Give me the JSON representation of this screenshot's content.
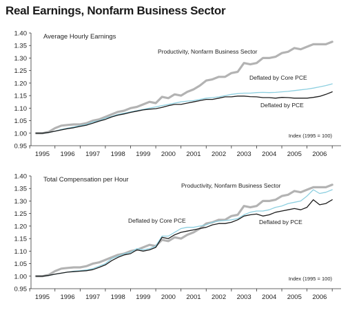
{
  "title": "Real Earnings, Nonfarm Business Sector",
  "colors": {
    "productivity": "#b3b3b3",
    "core_pce": "#8ccfe0",
    "pce": "#1a1a1a",
    "axis": "#333333"
  },
  "chart_data": [
    {
      "type": "line",
      "title": "Average Hourly Earnings",
      "note": "Index (1995 = 100)",
      "x_tick_labels": [
        "1995",
        "1996",
        "1997",
        "1998",
        "1999",
        "2000",
        "2001",
        "2002",
        "2003",
        "2004",
        "2005",
        "2006"
      ],
      "y_tick_labels": [
        "0.95",
        "1.00",
        "1.05",
        "1.10",
        "1.15",
        "1.20",
        "1.25",
        "1.30",
        "1.35",
        "1.40"
      ],
      "ylim": [
        0.95,
        1.4
      ],
      "x": [
        1994.75,
        1995.0,
        1995.25,
        1995.5,
        1995.75,
        1996.0,
        1996.25,
        1996.5,
        1996.75,
        1997.0,
        1997.25,
        1997.5,
        1997.75,
        1998.0,
        1998.25,
        1998.5,
        1998.75,
        1999.0,
        1999.25,
        1999.5,
        1999.75,
        2000.0,
        2000.25,
        2000.5,
        2000.75,
        2001.0,
        2001.25,
        2001.5,
        2001.75,
        2002.0,
        2002.25,
        2002.5,
        2002.75,
        2003.0,
        2003.25,
        2003.5,
        2003.75,
        2004.0,
        2004.25,
        2004.5,
        2004.75,
        2005.0,
        2005.25,
        2005.5,
        2005.75,
        2006.0,
        2006.25,
        2006.5
      ],
      "series": [
        {
          "name": "Productivity, Nonfarm Business Sector",
          "key": "productivity",
          "values": [
            1.0,
            1.0,
            1.005,
            1.02,
            1.03,
            1.033,
            1.035,
            1.035,
            1.04,
            1.05,
            1.055,
            1.065,
            1.075,
            1.085,
            1.09,
            1.1,
            1.105,
            1.115,
            1.125,
            1.12,
            1.145,
            1.14,
            1.155,
            1.15,
            1.165,
            1.175,
            1.19,
            1.21,
            1.215,
            1.225,
            1.225,
            1.24,
            1.245,
            1.28,
            1.275,
            1.28,
            1.3,
            1.3,
            1.305,
            1.32,
            1.325,
            1.34,
            1.335,
            1.345,
            1.355,
            1.355,
            1.355,
            1.365
          ],
          "label": "Productivity, Nonfarm Business Sector"
        },
        {
          "name": "Deflated by Core PCE",
          "key": "core_pce",
          "values": [
            1.0,
            1.0,
            1.003,
            1.008,
            1.015,
            1.02,
            1.025,
            1.03,
            1.035,
            1.045,
            1.05,
            1.06,
            1.067,
            1.075,
            1.08,
            1.085,
            1.09,
            1.095,
            1.1,
            1.105,
            1.11,
            1.115,
            1.12,
            1.125,
            1.128,
            1.13,
            1.135,
            1.14,
            1.142,
            1.145,
            1.15,
            1.155,
            1.158,
            1.16,
            1.16,
            1.162,
            1.163,
            1.162,
            1.163,
            1.165,
            1.167,
            1.17,
            1.173,
            1.176,
            1.18,
            1.185,
            1.19,
            1.197
          ],
          "label": "Deflated by Core PCE"
        },
        {
          "name": "Deflated by PCE",
          "key": "pce",
          "values": [
            1.0,
            1.0,
            1.003,
            1.008,
            1.013,
            1.018,
            1.022,
            1.027,
            1.032,
            1.04,
            1.048,
            1.055,
            1.065,
            1.072,
            1.077,
            1.083,
            1.088,
            1.093,
            1.096,
            1.098,
            1.103,
            1.11,
            1.115,
            1.115,
            1.12,
            1.125,
            1.13,
            1.135,
            1.135,
            1.14,
            1.145,
            1.145,
            1.148,
            1.148,
            1.146,
            1.145,
            1.142,
            1.142,
            1.14,
            1.143,
            1.142,
            1.14,
            1.14,
            1.14,
            1.143,
            1.147,
            1.155,
            1.165
          ],
          "label": "Deflated by PCE"
        }
      ]
    },
    {
      "type": "line",
      "title": "Total Compensation per Hour",
      "note": "Index (1995 = 100)",
      "x_tick_labels": [
        "1995",
        "1996",
        "1997",
        "1998",
        "1999",
        "2000",
        "2001",
        "2002",
        "2003",
        "2004",
        "2005",
        "2006"
      ],
      "y_tick_labels": [
        "0.95",
        "1.00",
        "1.05",
        "1.10",
        "1.15",
        "1.20",
        "1.25",
        "1.30",
        "1.35",
        "1.40"
      ],
      "ylim": [
        0.95,
        1.4
      ],
      "x": [
        1994.75,
        1995.0,
        1995.25,
        1995.5,
        1995.75,
        1996.0,
        1996.25,
        1996.5,
        1996.75,
        1997.0,
        1997.25,
        1997.5,
        1997.75,
        1998.0,
        1998.25,
        1998.5,
        1998.75,
        1999.0,
        1999.25,
        1999.5,
        1999.75,
        2000.0,
        2000.25,
        2000.5,
        2000.75,
        2001.0,
        2001.25,
        2001.5,
        2001.75,
        2002.0,
        2002.25,
        2002.5,
        2002.75,
        2003.0,
        2003.25,
        2003.5,
        2003.75,
        2004.0,
        2004.25,
        2004.5,
        2004.75,
        2005.0,
        2005.25,
        2005.5,
        2005.75,
        2006.0,
        2006.25,
        2006.5
      ],
      "series": [
        {
          "name": "Productivity, Nonfarm Business Sector",
          "key": "productivity",
          "values": [
            1.0,
            1.0,
            1.005,
            1.02,
            1.03,
            1.033,
            1.035,
            1.035,
            1.04,
            1.05,
            1.055,
            1.065,
            1.075,
            1.085,
            1.09,
            1.1,
            1.105,
            1.115,
            1.125,
            1.12,
            1.145,
            1.14,
            1.155,
            1.15,
            1.165,
            1.175,
            1.19,
            1.21,
            1.215,
            1.225,
            1.225,
            1.24,
            1.245,
            1.28,
            1.275,
            1.28,
            1.3,
            1.3,
            1.305,
            1.32,
            1.325,
            1.34,
            1.335,
            1.345,
            1.355,
            1.355,
            1.355,
            1.365
          ],
          "label": "Productivity, Nonfarm Business Sector"
        },
        {
          "name": "Deflated by Core PCE",
          "key": "core_pce",
          "values": [
            1.0,
            1.0,
            1.003,
            1.008,
            1.012,
            1.016,
            1.02,
            1.022,
            1.025,
            1.03,
            1.04,
            1.05,
            1.07,
            1.08,
            1.09,
            1.095,
            1.11,
            1.105,
            1.11,
            1.12,
            1.16,
            1.16,
            1.175,
            1.19,
            1.195,
            1.195,
            1.2,
            1.205,
            1.215,
            1.22,
            1.222,
            1.225,
            1.23,
            1.245,
            1.255,
            1.26,
            1.26,
            1.265,
            1.275,
            1.28,
            1.29,
            1.295,
            1.3,
            1.32,
            1.345,
            1.33,
            1.335,
            1.345
          ],
          "label": "Deflated by Core PCE"
        },
        {
          "name": "Deflated by PCE",
          "key": "pce",
          "values": [
            1.0,
            1.0,
            1.003,
            1.008,
            1.012,
            1.016,
            1.018,
            1.02,
            1.022,
            1.026,
            1.035,
            1.045,
            1.062,
            1.075,
            1.085,
            1.09,
            1.105,
            1.1,
            1.105,
            1.115,
            1.155,
            1.15,
            1.165,
            1.175,
            1.18,
            1.185,
            1.19,
            1.195,
            1.205,
            1.21,
            1.21,
            1.215,
            1.225,
            1.24,
            1.245,
            1.248,
            1.24,
            1.245,
            1.255,
            1.26,
            1.265,
            1.27,
            1.265,
            1.275,
            1.305,
            1.285,
            1.29,
            1.305
          ],
          "label": "Deflated by PCE"
        }
      ]
    }
  ]
}
